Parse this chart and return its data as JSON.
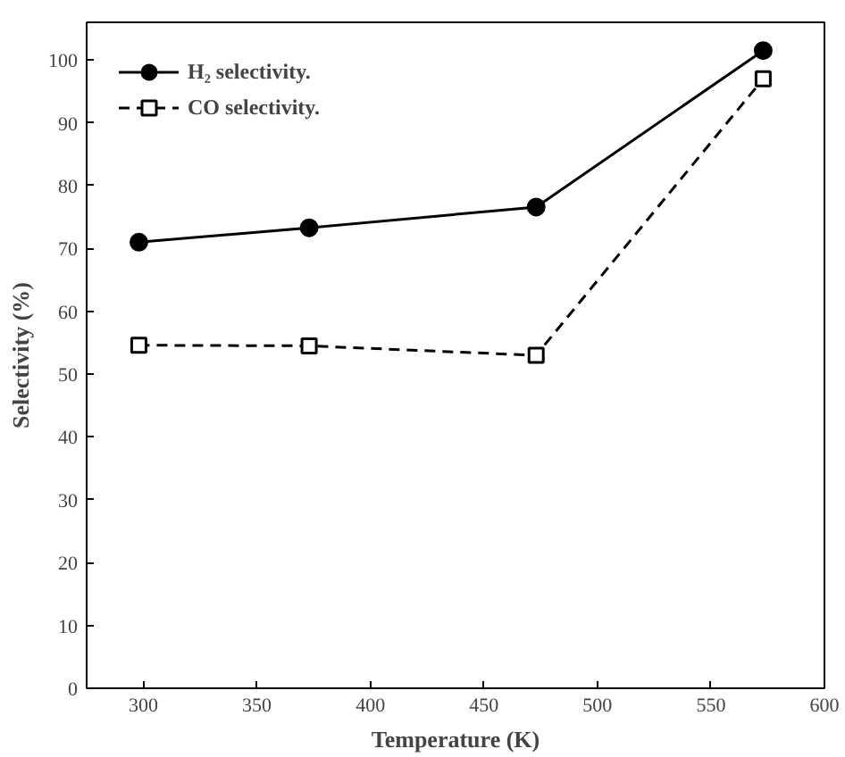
{
  "chart_data": {
    "type": "line",
    "xlabel": "Temperature (K)",
    "ylabel": "Selectivity (%)",
    "x": [
      298,
      373,
      473,
      573
    ],
    "series": [
      {
        "name": "H₂ selectivity.",
        "color": "#000000",
        "marker": "circle",
        "line_style": "solid",
        "values": [
          71,
          73.3,
          76.6,
          101.5
        ]
      },
      {
        "name": "CO selectivity.",
        "color": "#000000",
        "marker": "square",
        "line_style": "dashed",
        "values": [
          54.6,
          54.5,
          53,
          97
        ]
      }
    ],
    "xlim": [
      275,
      600
    ],
    "xticks": [
      300,
      350,
      400,
      450,
      500,
      550,
      600
    ],
    "ylim": [
      0,
      106
    ],
    "yticks": [
      0,
      10,
      20,
      30,
      40,
      50,
      60,
      70,
      80,
      90,
      100
    ],
    "grid": false,
    "legend": "top left"
  }
}
